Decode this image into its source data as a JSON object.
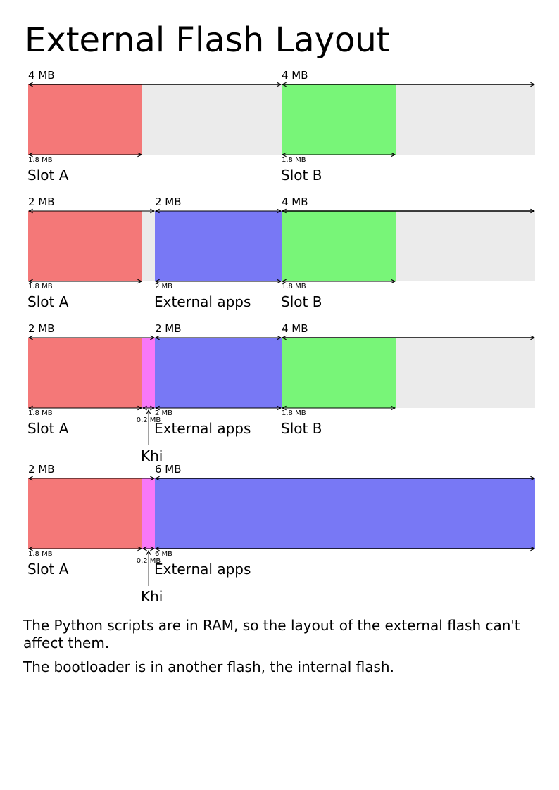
{
  "title": "External Flash Layout",
  "colors": {
    "slot_a": "#f47878",
    "slot_b": "#78f578",
    "external_apps": "#7878f5",
    "khi": "#f878f8",
    "free": "#ebebeb"
  },
  "units": "MB",
  "layouts": [
    {
      "partitions": [
        {
          "name": "Slot A",
          "size": "4 MB",
          "start": 0,
          "size_mb": 4
        },
        {
          "name": "Slot B",
          "size": "4 MB",
          "start": 4,
          "size_mb": 4
        }
      ],
      "used": [
        {
          "partition": 0,
          "label": "1.8 MB",
          "start": 0,
          "size_mb": 1.8,
          "color": "slot_a"
        },
        {
          "partition": 1,
          "label": "1.8 MB",
          "start": 4,
          "size_mb": 1.8,
          "color": "slot_b"
        }
      ]
    },
    {
      "partitions": [
        {
          "name": "Slot A",
          "size": "2 MB",
          "start": 0,
          "size_mb": 2
        },
        {
          "name": "External apps",
          "size": "2 MB",
          "start": 2,
          "size_mb": 2
        },
        {
          "name": "Slot B",
          "size": "4 MB",
          "start": 4,
          "size_mb": 4
        }
      ],
      "used": [
        {
          "partition": 0,
          "label": "1.8 MB",
          "start": 0,
          "size_mb": 1.8,
          "color": "slot_a"
        },
        {
          "partition": 1,
          "label": "2 MB",
          "start": 2,
          "size_mb": 2,
          "color": "external_apps"
        },
        {
          "partition": 2,
          "label": "1.8 MB",
          "start": 4,
          "size_mb": 1.8,
          "color": "slot_b"
        }
      ]
    },
    {
      "partitions": [
        {
          "name": "Slot A",
          "size": "2 MB",
          "start": 0,
          "size_mb": 2
        },
        {
          "name": "External apps",
          "size": "2 MB",
          "start": 2,
          "size_mb": 2
        },
        {
          "name": "Slot B",
          "size": "4 MB",
          "start": 4,
          "size_mb": 4
        }
      ],
      "used": [
        {
          "partition": 0,
          "label": "1.8 MB",
          "start": 0,
          "size_mb": 1.8,
          "color": "slot_a"
        },
        {
          "partition": null,
          "label": "0.2 MB",
          "start": 1.8,
          "size_mb": 0.2,
          "color": "khi",
          "name": "Khi"
        },
        {
          "partition": 1,
          "label": "2 MB",
          "start": 2,
          "size_mb": 2,
          "color": "external_apps"
        },
        {
          "partition": 2,
          "label": "1.8 MB",
          "start": 4,
          "size_mb": 1.8,
          "color": "slot_b"
        }
      ]
    },
    {
      "partitions": [
        {
          "name": "Slot A",
          "size": "2 MB",
          "start": 0,
          "size_mb": 2
        },
        {
          "name": "External apps",
          "size": "6 MB",
          "start": 2,
          "size_mb": 6
        }
      ],
      "used": [
        {
          "partition": 0,
          "label": "1.8 MB",
          "start": 0,
          "size_mb": 1.8,
          "color": "slot_a"
        },
        {
          "partition": null,
          "label": "0.2 MB",
          "start": 1.8,
          "size_mb": 0.2,
          "color": "khi",
          "name": "Khi"
        },
        {
          "partition": 1,
          "label": "6 MB",
          "start": 2,
          "size_mb": 6,
          "color": "external_apps"
        }
      ]
    }
  ],
  "notes": [
    "The Python scripts are in RAM, so the layout of the external flash can't affect them.",
    "The bootloader is in another flash, the internal flash."
  ]
}
